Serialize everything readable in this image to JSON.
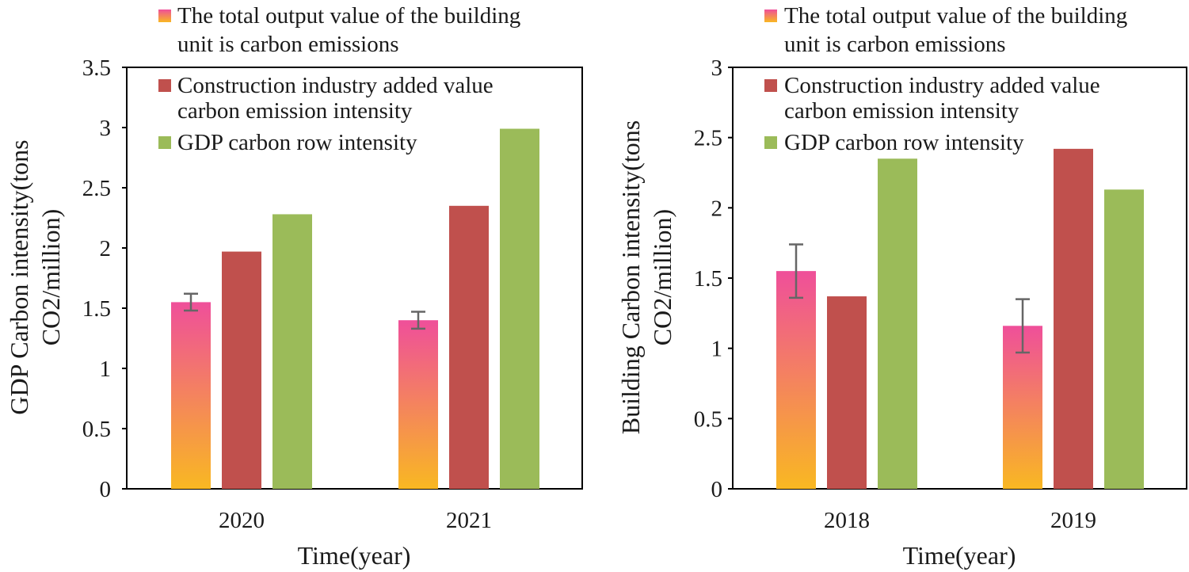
{
  "colors": {
    "pink_top": "#ef4f9a",
    "pink_bottom": "#f9b822",
    "red": "#c0504d",
    "green": "#9bbb59",
    "axis": "#000000",
    "error": "#666666"
  },
  "chart_data": [
    {
      "type": "bar",
      "title": "",
      "xlabel": "Time(year)",
      "ylabel_lines": [
        "GDP Carbon intensity(tons",
        "CO2/million)"
      ],
      "ylim": [
        0,
        3.5
      ],
      "yticks": [
        "0",
        "0.5",
        "1",
        "1.5",
        "2",
        "2.5",
        "3",
        "3.5"
      ],
      "categories": [
        "2020",
        "2021"
      ],
      "legend_position": "top-left",
      "series": [
        {
          "name_lines": [
            "The total output value of the building",
            "unit is carbon emissions"
          ],
          "color_key": "gradient",
          "values": [
            1.55,
            1.4
          ],
          "errors": [
            0.07,
            0.07
          ]
        },
        {
          "name_lines": [
            "Construction industry added value",
            "carbon emission intensity"
          ],
          "color_key": "red",
          "values": [
            1.97,
            2.35
          ]
        },
        {
          "name_lines": [
            "GDP carbon row intensity"
          ],
          "color_key": "green",
          "values": [
            2.28,
            2.99
          ]
        }
      ]
    },
    {
      "type": "bar",
      "title": "",
      "xlabel": "Time(year)",
      "ylabel_lines": [
        "Building Carbon intensity(tons",
        "CO2/million)"
      ],
      "ylim": [
        0,
        3
      ],
      "yticks": [
        "0",
        "0.5",
        "1",
        "1.5",
        "2",
        "2.5",
        "3"
      ],
      "categories": [
        "2018",
        "2019"
      ],
      "legend_position": "top-left",
      "series": [
        {
          "name_lines": [
            "The total output value of the building",
            "unit is carbon emissions"
          ],
          "color_key": "gradient",
          "values": [
            1.55,
            1.16
          ],
          "errors": [
            0.19,
            0.19
          ]
        },
        {
          "name_lines": [
            "Construction industry added value",
            "carbon emission intensity"
          ],
          "color_key": "red",
          "values": [
            1.37,
            2.42
          ]
        },
        {
          "name_lines": [
            "GDP carbon row intensity"
          ],
          "color_key": "green",
          "values": [
            2.35,
            2.13
          ]
        }
      ]
    }
  ]
}
